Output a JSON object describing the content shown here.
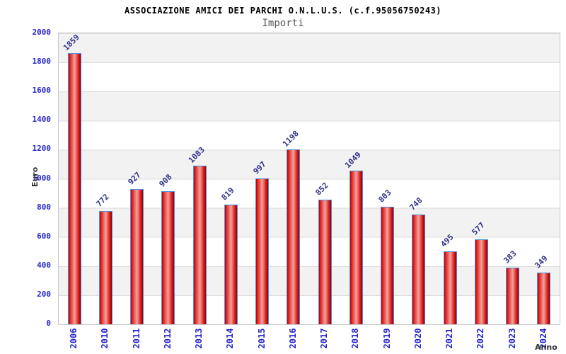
{
  "chart_data": {
    "type": "bar",
    "title": "ASSOCIAZIONE AMICI DEI PARCHI O.N.L.U.S. (c.f.95056750243)",
    "subtitle": "Importi",
    "xlabel": "Anno",
    "ylabel": "Euro",
    "categories": [
      "2006",
      "2010",
      "2011",
      "2012",
      "2013",
      "2014",
      "2015",
      "2016",
      "2017",
      "2018",
      "2019",
      "2020",
      "2021",
      "2022",
      "2023",
      "2024"
    ],
    "values": [
      1859,
      772,
      927,
      908,
      1083,
      819,
      997,
      1198,
      852,
      1049,
      803,
      748,
      495,
      577,
      383,
      349
    ],
    "ylim": [
      0,
      2000
    ],
    "ytick_step": 200,
    "yticks": [
      0,
      200,
      400,
      600,
      800,
      1000,
      1200,
      1400,
      1600,
      1800,
      2000
    ],
    "legend": "none",
    "grid": "alternating horizontal bands every 200 units",
    "colors": {
      "bar_fill": "#dd1a1a",
      "bar_highlight": "#efa49c",
      "bar_border": "#4b93e0",
      "tick_label": "#2525cc",
      "value_label": "#31318a",
      "band_gray": "#f2f2f2",
      "gridline": "#dcdcdc",
      "subtitle_text": "#585858",
      "axis_title_text": "#333333"
    }
  }
}
